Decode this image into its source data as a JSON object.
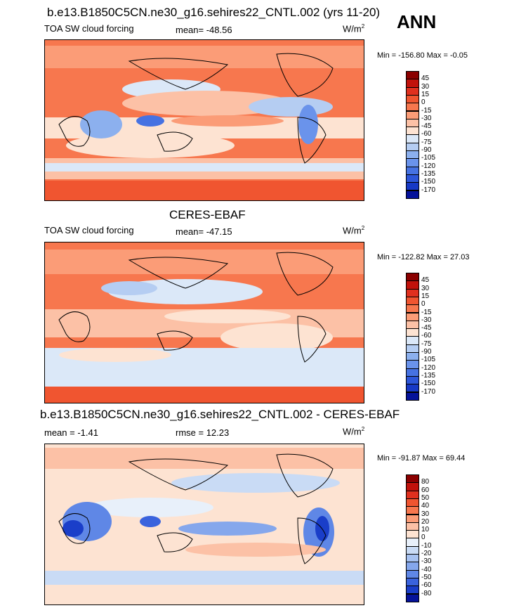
{
  "season": "ANN",
  "panels": [
    {
      "title": "b.e13.B1850C5CN.ne30_g16.sehires22_CNTL.002 (yrs 11-20)",
      "left_label": "TOA SW cloud forcing",
      "center_label": "mean= -48.56",
      "units": "W/m",
      "units_sup": "2",
      "minmax": "Min = -156.80 Max =  -0.05",
      "levels": [
        "45",
        "30",
        "15",
        "0",
        "-15",
        "-30",
        "-45",
        "-60",
        "-75",
        "-90",
        "-105",
        "-120",
        "-135",
        "-150",
        "-170"
      ],
      "colors": [
        "#8b0000",
        "#c1120b",
        "#e0301e",
        "#f05530",
        "#f7774e",
        "#fb9c77",
        "#fcc1a6",
        "#fde3d2",
        "#dbe8f8",
        "#b5cdf2",
        "#8cb0ee",
        "#6a93eb",
        "#4672e2",
        "#2d56d9",
        "#1739c6",
        "#05129a"
      ]
    },
    {
      "title": "CERES-EBAF",
      "left_label": "TOA SW cloud forcing",
      "center_label": "mean= -47.15",
      "units": "W/m",
      "units_sup": "2",
      "minmax": "Min = -122.82 Max =  27.03",
      "levels": [
        "45",
        "30",
        "15",
        "0",
        "-15",
        "-30",
        "-45",
        "-60",
        "-75",
        "-90",
        "-105",
        "-120",
        "-135",
        "-150",
        "-170"
      ],
      "colors": [
        "#8b0000",
        "#c1120b",
        "#e0301e",
        "#f05530",
        "#f7774e",
        "#fb9c77",
        "#fcc1a6",
        "#fde3d2",
        "#dbe8f8",
        "#b5cdf2",
        "#8cb0ee",
        "#6a93eb",
        "#4672e2",
        "#2d56d9",
        "#1739c6",
        "#05129a"
      ]
    },
    {
      "title": "b.e13.B1850C5CN.ne30_g16.sehires22_CNTL.002 - CERES-EBAF",
      "left_label": "mean =  -1.41",
      "center_label": "rmse =  12.23",
      "units": "W/m",
      "units_sup": "2",
      "minmax": "Min = -91.87 Max =  69.44",
      "levels": [
        "80",
        "60",
        "50",
        "40",
        "30",
        "20",
        "10",
        "0",
        "-10",
        "-20",
        "-30",
        "-40",
        "-50",
        "-60",
        "-80"
      ],
      "colors": [
        "#8b0000",
        "#c1120b",
        "#e0301e",
        "#f05530",
        "#f7774e",
        "#fb9c77",
        "#fcc1a6",
        "#fde3d2",
        "#e8f0fa",
        "#c9dbf5",
        "#a7c2f1",
        "#85a7ec",
        "#5f87e6",
        "#3a63dd",
        "#1a3ec9",
        "#05129a"
      ]
    }
  ]
}
